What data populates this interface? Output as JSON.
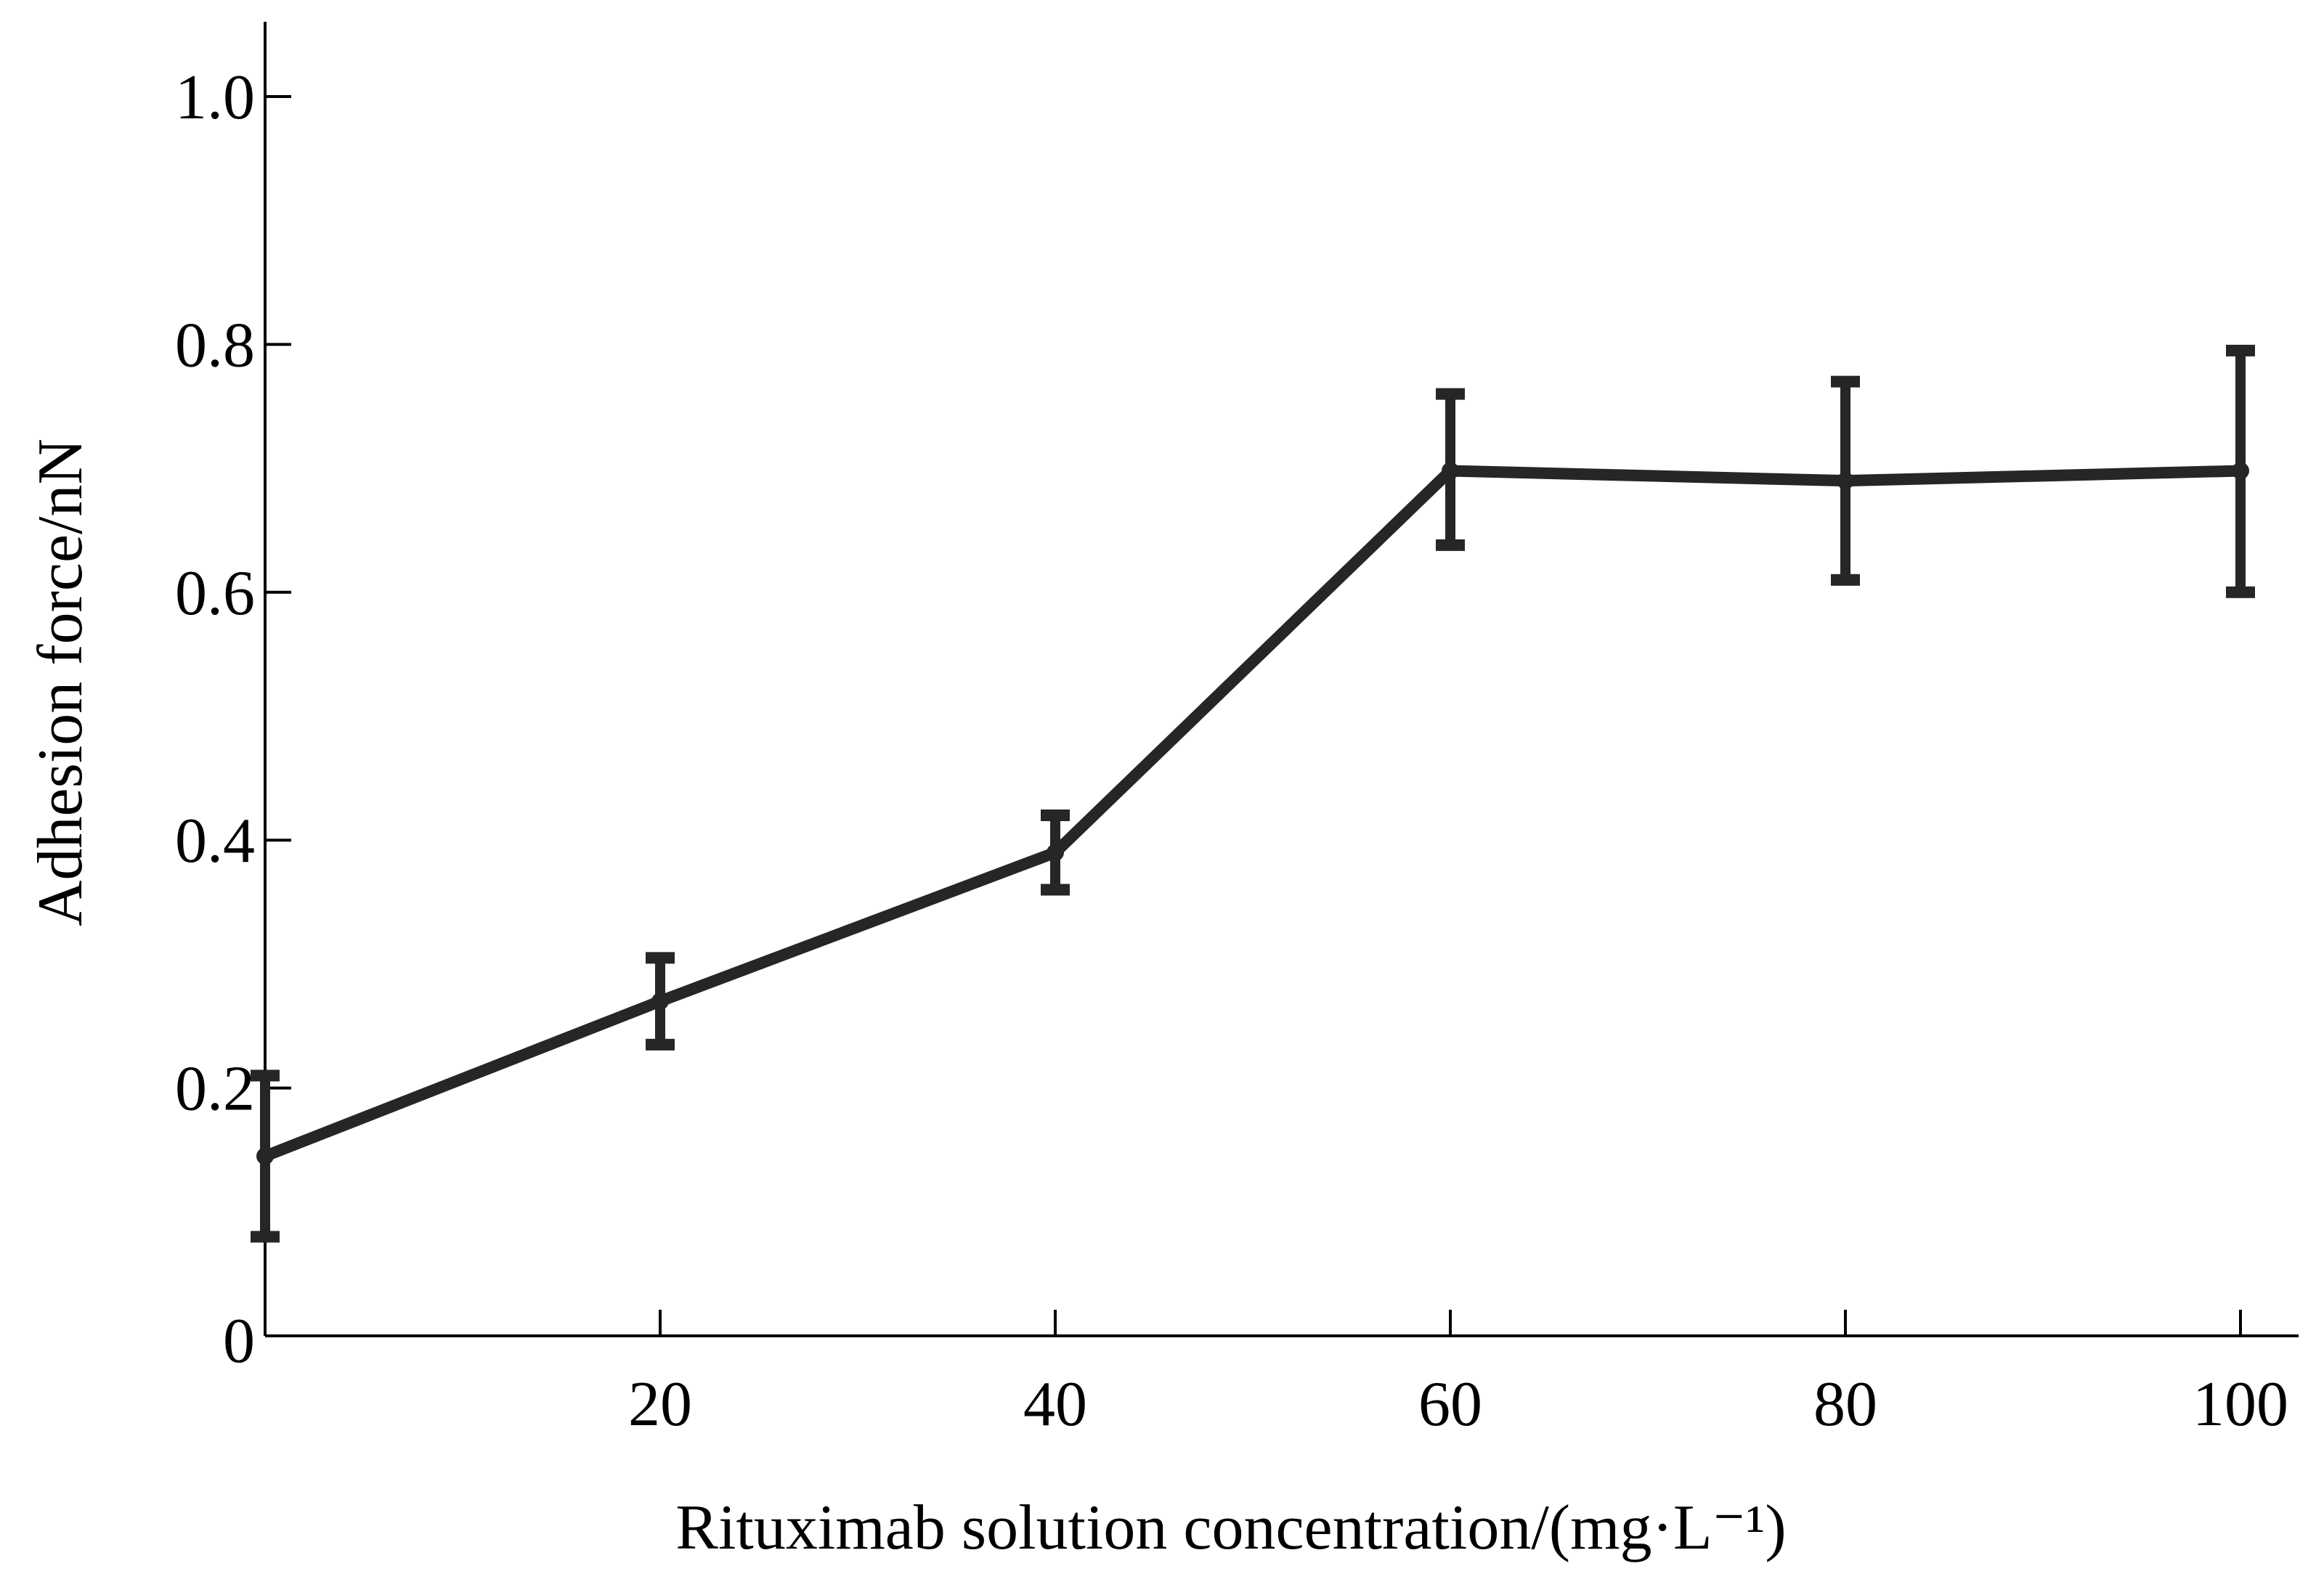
{
  "chart_data": {
    "type": "line",
    "xlabel": "Rituximab solution concentration/(mg·L⁻¹)",
    "ylabel": "Adhesion force/nN",
    "xlim": [
      0,
      103
    ],
    "ylim": [
      0,
      1.05
    ],
    "x_ticks": [
      20,
      40,
      60,
      80,
      100
    ],
    "x_tick_labels": [
      "20",
      "40",
      "60",
      "80",
      "100"
    ],
    "y_ticks": [
      0,
      0.2,
      0.4,
      0.6,
      0.8,
      1.0
    ],
    "y_tick_labels": [
      "0",
      "0.2",
      "0.4",
      "0.6",
      "0.8",
      "1.0"
    ],
    "grid": false,
    "series": [
      {
        "x": [
          0,
          20,
          40,
          60,
          80,
          100
        ],
        "y": [
          0.145,
          0.27,
          0.39,
          0.698,
          0.69,
          0.698
        ],
        "err_low": [
          0.065,
          0.035,
          0.03,
          0.06,
          0.08,
          0.098
        ],
        "err_high": [
          0.065,
          0.035,
          0.03,
          0.062,
          0.08,
          0.097
        ],
        "color": "#262626"
      }
    ]
  }
}
